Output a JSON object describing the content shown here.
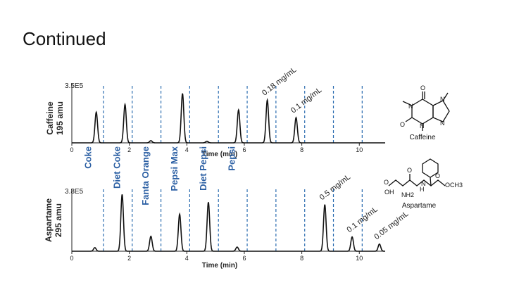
{
  "slide": {
    "title": "Continued"
  },
  "chart_data": [
    {
      "type": "line",
      "title": "Caffeine 195 amu",
      "ylabel_lines": [
        "Caffeine",
        "195 amu"
      ],
      "ymax_label": "3.5E5",
      "xlabel": "Time (min)",
      "xlim": [
        0,
        10.9
      ],
      "ylim": [
        0,
        1
      ],
      "x_ticks": [
        0,
        2,
        4,
        6,
        8,
        10
      ],
      "x_tick_labels": [
        "0",
        "2",
        "4",
        "6",
        "8",
        "10"
      ],
      "peaks": [
        {
          "x": 0.85,
          "y": 0.56
        },
        {
          "x": 1.85,
          "y": 0.7
        },
        {
          "x": 2.75,
          "y": 0.04
        },
        {
          "x": 3.85,
          "y": 0.9
        },
        {
          "x": 4.7,
          "y": 0.03
        },
        {
          "x": 5.8,
          "y": 0.6
        },
        {
          "x": 6.8,
          "y": 0.78
        },
        {
          "x": 7.8,
          "y": 0.46
        }
      ],
      "segment_boundaries": [
        1.1,
        2.1,
        3.1,
        4.1,
        5.1,
        6.1,
        7.1,
        8.1,
        9.1,
        10.1
      ],
      "annotations": [
        {
          "text": "0.18 mg/mL",
          "x": 6.8
        },
        {
          "text": "0.1 mg/mL",
          "x": 7.8
        }
      ],
      "compound": "Caffeine"
    },
    {
      "type": "line",
      "title": "Aspartame 295 amu",
      "ylabel_lines": [
        "Aspartame",
        "295 amu"
      ],
      "ymax_label": "3.8E5",
      "xlabel": "Time (min)",
      "xlim": [
        0,
        10.9
      ],
      "ylim": [
        0,
        1
      ],
      "x_ticks": [
        0,
        2,
        4,
        6,
        8,
        10
      ],
      "x_tick_labels": [
        "0",
        "2",
        "4",
        "6",
        "8",
        "10"
      ],
      "peaks": [
        {
          "x": 0.8,
          "y": 0.06
        },
        {
          "x": 1.75,
          "y": 0.95
        },
        {
          "x": 2.75,
          "y": 0.25
        },
        {
          "x": 3.75,
          "y": 0.62
        },
        {
          "x": 4.75,
          "y": 0.82
        },
        {
          "x": 5.75,
          "y": 0.07
        },
        {
          "x": 8.8,
          "y": 0.78
        },
        {
          "x": 9.75,
          "y": 0.24
        },
        {
          "x": 10.7,
          "y": 0.12
        }
      ],
      "segment_boundaries": [
        1.1,
        2.1,
        3.1,
        4.1,
        5.1,
        6.1,
        7.1,
        8.1,
        9.1,
        10.1
      ],
      "annotations": [
        {
          "text": "0.5 mg/mL",
          "x": 8.8
        },
        {
          "text": "0.1 mg/mL",
          "x": 9.75
        },
        {
          "text": "0.05 mg/mL",
          "x": 10.7
        }
      ],
      "compound": "Aspartame"
    }
  ],
  "drinks": [
    {
      "name": "Coke",
      "x": 0.55
    },
    {
      "name": "Diet Coke",
      "x": 1.55
    },
    {
      "name": "Fanta Orange",
      "x": 2.55
    },
    {
      "name": "Pepsi Max",
      "x": 3.55
    },
    {
      "name": "Diet Pepsi",
      "x": 4.55
    },
    {
      "name": "Pepsi",
      "x": 5.55
    }
  ],
  "structures": {
    "caffeine_name": "Caffeine",
    "caffeine_atoms": [
      "O",
      "N",
      "N",
      "O",
      "N",
      "N"
    ],
    "aspartame_name": "Aspartame",
    "aspartame_atoms": [
      "O",
      "O",
      "O",
      "OH",
      "NH2",
      "H",
      "N",
      "OCH3"
    ]
  },
  "colors": {
    "trace": "#111111",
    "boundary": "#2b6cb0",
    "drink_label": "#2b5fa3"
  }
}
